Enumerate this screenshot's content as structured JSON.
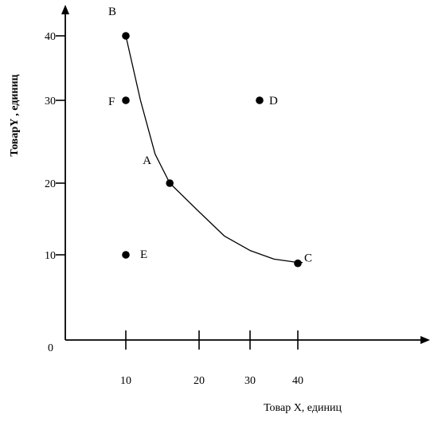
{
  "chart_data": {
    "type": "scatter",
    "title": "",
    "xlabel": "Товар X, единиц",
    "ylabel": "ТоварY , единиц",
    "origin_label": "0",
    "x_tick_labels": [
      "10",
      "20",
      "30",
      "40"
    ],
    "y_tick_labels": [
      "10",
      "20",
      "30",
      "40"
    ],
    "grid": false,
    "points": [
      {
        "name": "B",
        "x": 10,
        "y": 40
      },
      {
        "name": "F",
        "x": 10,
        "y": 30
      },
      {
        "name": "D",
        "x": 32,
        "y": 30
      },
      {
        "name": "A",
        "x": 16,
        "y": 20
      },
      {
        "name": "E",
        "x": 10,
        "y": 10
      },
      {
        "name": "C",
        "x": 40,
        "y": 9
      }
    ],
    "curve": {
      "type": "indifference",
      "passes_through": [
        "B",
        "A",
        "C"
      ],
      "x": [
        10,
        12,
        14,
        16,
        20,
        25,
        30,
        35,
        40,
        41
      ],
      "y": [
        40,
        30,
        23.5,
        20,
        16,
        12.6,
        10.6,
        9.5,
        9.1,
        9.1
      ]
    }
  }
}
